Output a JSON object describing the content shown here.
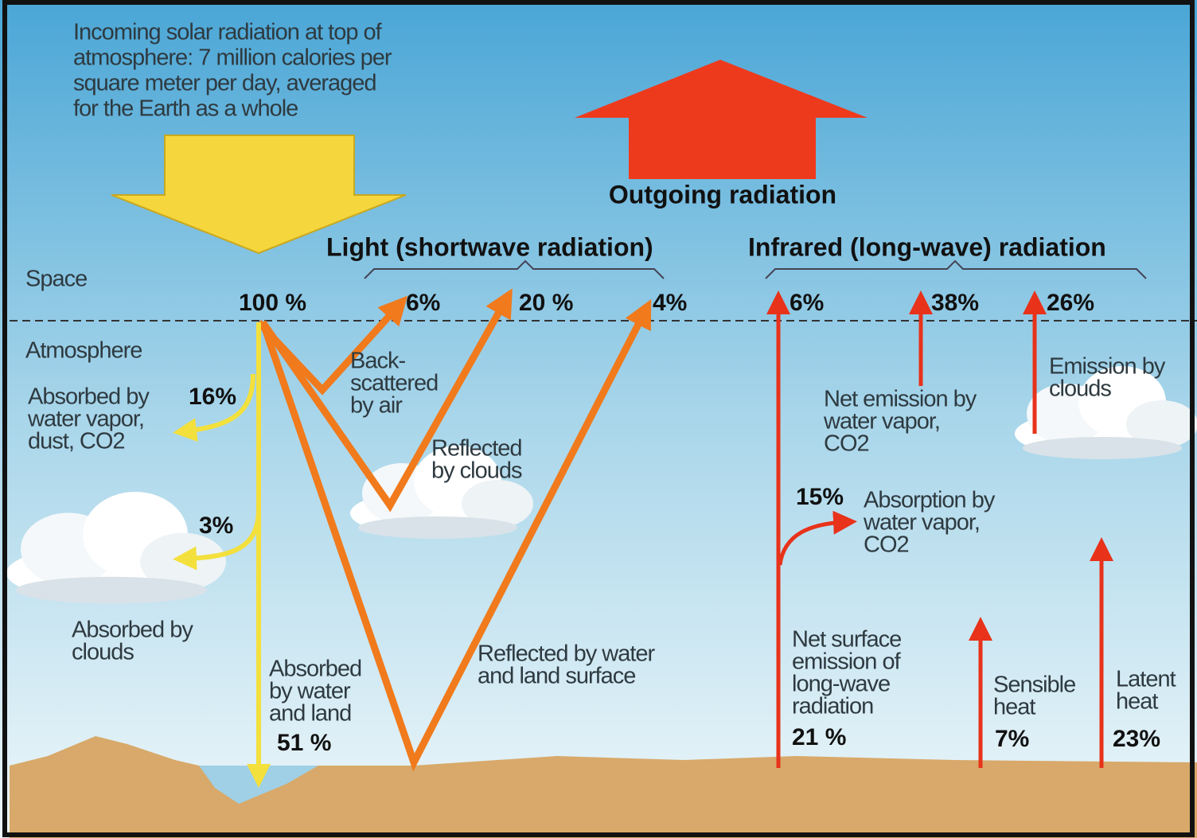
{
  "incoming": [
    "Incoming solar radiation at top of",
    "atmosphere: 7 million calories per",
    "square meter per day, averaged",
    "for the Earth as a whole"
  ],
  "outgoing": "Outgoing radiation",
  "light_heading": "Light (shortwave radiation)",
  "infrared_heading": "Infrared (long-wave) radiation",
  "layers": [
    "Space",
    "Atmosphere"
  ],
  "shortwave": {
    "total": "100 %",
    "backscattered": {
      "percent": "6%",
      "label": [
        "Back-",
        "scattered",
        "by air"
      ]
    },
    "reflected_clouds": {
      "percent": "20 %",
      "label": [
        "Reflected",
        "by clouds"
      ]
    },
    "reflected_surface": {
      "percent": "4%",
      "label": [
        "Reflected by water",
        "and land surface"
      ]
    },
    "absorbed_vapor": {
      "percent": "16%",
      "label": [
        "Absorbed by",
        "water vapor,",
        "dust, CO2"
      ]
    },
    "absorbed_clouds": {
      "percent": "3%",
      "label": [
        "Absorbed by",
        "clouds"
      ]
    },
    "absorbed_surface": {
      "percent": "51 %",
      "label": [
        "Absorbed",
        "by water",
        "and land"
      ]
    }
  },
  "longwave": {
    "direct": "6%",
    "water_vapor": {
      "percent": "38%",
      "label": [
        "Net emission by",
        "water vapor,",
        "CO2"
      ]
    },
    "clouds": {
      "percent": "26%",
      "label": [
        "Emission by",
        "clouds"
      ]
    },
    "absorption": {
      "percent": "15%",
      "label": [
        "Absorption by",
        "water vapor,",
        "CO2"
      ]
    },
    "surface": {
      "percent": "21 %",
      "label": [
        "Net surface",
        "emission of",
        "long-wave",
        "radiation"
      ]
    },
    "sensible": {
      "percent": "7%",
      "label": [
        "Sensible",
        "heat"
      ]
    },
    "latent": {
      "percent": "23%",
      "label": [
        "Latent",
        "heat"
      ]
    }
  }
}
